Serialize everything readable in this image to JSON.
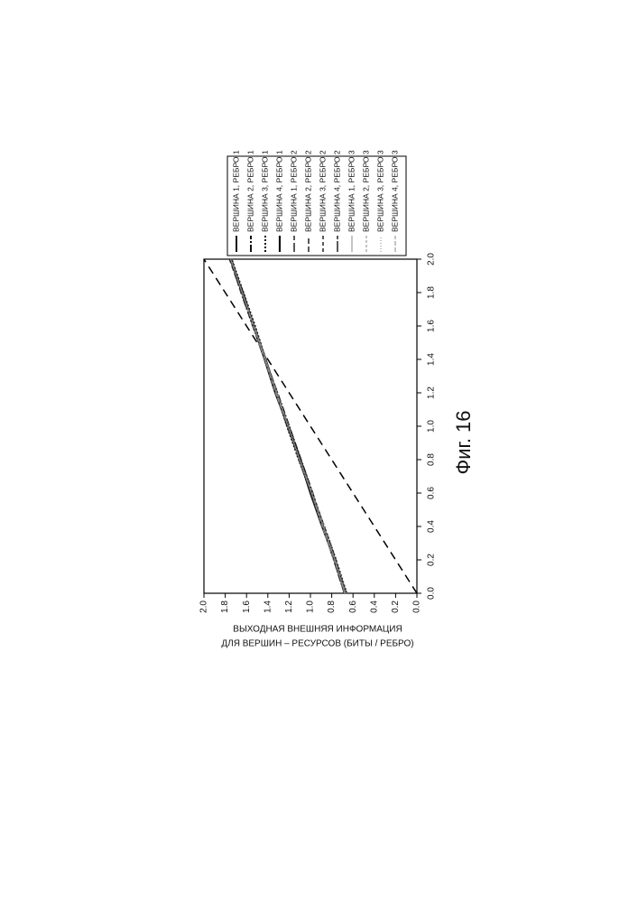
{
  "chart_data": {
    "type": "line",
    "caption": "Фиг. 16",
    "y_label": [
      "ВЫХОДНАЯ ВНЕШНЯЯ ИНФОРМАЦИЯ",
      "ДЛЯ ВЕРШИН – РЕСУРСОВ (БИТЫ / РЕБРО)"
    ],
    "x": [
      0,
      0.2,
      0.4,
      0.6,
      0.8,
      1.0,
      1.2,
      1.4,
      1.6,
      1.8,
      2.0
    ],
    "series": [
      {
        "name": "ВЕРШИНА 1, РЕБРО 1",
        "color": "#111",
        "width": 2,
        "dash": "none",
        "values": [
          0.67,
          0.77,
          0.88,
          0.99,
          1.1,
          1.21,
          1.32,
          1.42,
          1.53,
          1.64,
          1.75
        ]
      },
      {
        "name": "ВЕРШИНА 2, РЕБРО 1",
        "color": "#111",
        "width": 2,
        "dash": "8,2,2,2",
        "values": [
          0.68,
          0.78,
          0.88,
          0.98,
          1.09,
          1.2,
          1.31,
          1.43,
          1.54,
          1.65,
          1.75
        ]
      },
      {
        "name": "ВЕРШИНА 3, РЕБРО 1",
        "color": "#111",
        "width": 2,
        "dash": "2,2",
        "values": [
          0.66,
          0.76,
          0.87,
          0.99,
          1.11,
          1.22,
          1.32,
          1.42,
          1.52,
          1.63,
          1.74
        ]
      },
      {
        "name": "ВЕРШИНА 4, РЕБРО 1",
        "color": "#111",
        "width": 2.2,
        "dash": "none",
        "values": [
          0.67,
          0.77,
          0.89,
          1.0,
          1.1,
          1.21,
          1.33,
          1.43,
          1.53,
          1.64,
          1.75
        ]
      },
      {
        "name": "ВЕРШИНА 1, РЕБРО 2",
        "color": "#222",
        "width": 1.5,
        "dash": "10,3",
        "values": [
          0.68,
          0.78,
          0.88,
          0.99,
          1.1,
          1.21,
          1.31,
          1.42,
          1.53,
          1.64,
          1.75
        ]
      },
      {
        "name": "ВЕРШИНА 2, РЕБРО 2",
        "color": "#222",
        "width": 1.5,
        "dash": "6,3",
        "values": [
          0.67,
          0.76,
          0.87,
          0.98,
          1.09,
          1.2,
          1.32,
          1.43,
          1.54,
          1.65,
          1.76
        ]
      },
      {
        "name": "ВЕРШИНА 3, РЕБРО 2",
        "color": "#222",
        "width": 1.5,
        "dash": "4,3",
        "values": [
          0.66,
          0.77,
          0.88,
          0.99,
          1.11,
          1.21,
          1.32,
          1.42,
          1.53,
          1.64,
          1.74
        ]
      },
      {
        "name": "ВЕРШИНА 4, РЕБРО 2",
        "color": "#222",
        "width": 1.5,
        "dash": "12,2",
        "values": [
          0.67,
          0.78,
          0.89,
          1.0,
          1.1,
          1.22,
          1.32,
          1.43,
          1.53,
          1.63,
          1.75
        ]
      },
      {
        "name": "ВЕРШИНА 1, РЕБРО 3",
        "color": "#888",
        "width": 1,
        "dash": "none",
        "values": [
          0.68,
          0.77,
          0.88,
          0.99,
          1.1,
          1.21,
          1.32,
          1.42,
          1.53,
          1.64,
          1.75
        ]
      },
      {
        "name": "ВЕРШИНА 2, РЕБРО 3",
        "color": "#888",
        "width": 1,
        "dash": "3,2",
        "values": [
          0.67,
          0.77,
          0.87,
          0.98,
          1.1,
          1.21,
          1.31,
          1.43,
          1.54,
          1.64,
          1.75
        ]
      },
      {
        "name": "ВЕРШИНА 3, РЕБРО 3",
        "color": "#888",
        "width": 1,
        "dash": "1,2",
        "values": [
          0.66,
          0.76,
          0.88,
          0.99,
          1.11,
          1.2,
          1.32,
          1.42,
          1.53,
          1.65,
          1.74
        ]
      },
      {
        "name": "ВЕРШИНА 4, РЕБРО 3",
        "color": "#888",
        "width": 1,
        "dash": "5,2",
        "values": [
          0.67,
          0.78,
          0.89,
          0.99,
          1.1,
          1.21,
          1.33,
          1.43,
          1.53,
          1.64,
          1.75
        ]
      }
    ],
    "reference_line": {
      "x": [
        0,
        2.0
      ],
      "y": [
        0,
        2.0
      ],
      "color": "#000",
      "dash": "9,6"
    },
    "xlim": [
      0,
      2.0
    ],
    "ylim": [
      0,
      2.0
    ],
    "xticks": [
      {
        "value": 0,
        "label": "0.0"
      },
      {
        "value": 0.2,
        "label": "0.2"
      },
      {
        "value": 0.4,
        "label": "0.4"
      },
      {
        "value": 0.6,
        "label": "0.6"
      },
      {
        "value": 0.8,
        "label": "0.8"
      },
      {
        "value": 1.0,
        "label": "1.0"
      },
      {
        "value": 1.2,
        "label": "1.2"
      },
      {
        "value": 1.4,
        "label": "1.4"
      },
      {
        "value": 1.6,
        "label": "1.6"
      },
      {
        "value": 1.8,
        "label": "1.8"
      },
      {
        "value": 2.0,
        "label": "2.0"
      }
    ],
    "yticks": [
      {
        "value": 0,
        "label": "0.0"
      },
      {
        "value": 0.2,
        "label": "0.2"
      },
      {
        "value": 0.4,
        "label": "0.4"
      },
      {
        "value": 0.6,
        "label": "0.6"
      },
      {
        "value": 0.8,
        "label": "0.8"
      },
      {
        "value": 1.0,
        "label": "1.0"
      },
      {
        "value": 1.2,
        "label": "1.2"
      },
      {
        "value": 1.4,
        "label": "1.4"
      },
      {
        "value": 1.6,
        "label": "1.6"
      },
      {
        "value": 1.8,
        "label": "1.8"
      },
      {
        "value": 2.0,
        "label": "2.0"
      }
    ],
    "grid": false
  }
}
